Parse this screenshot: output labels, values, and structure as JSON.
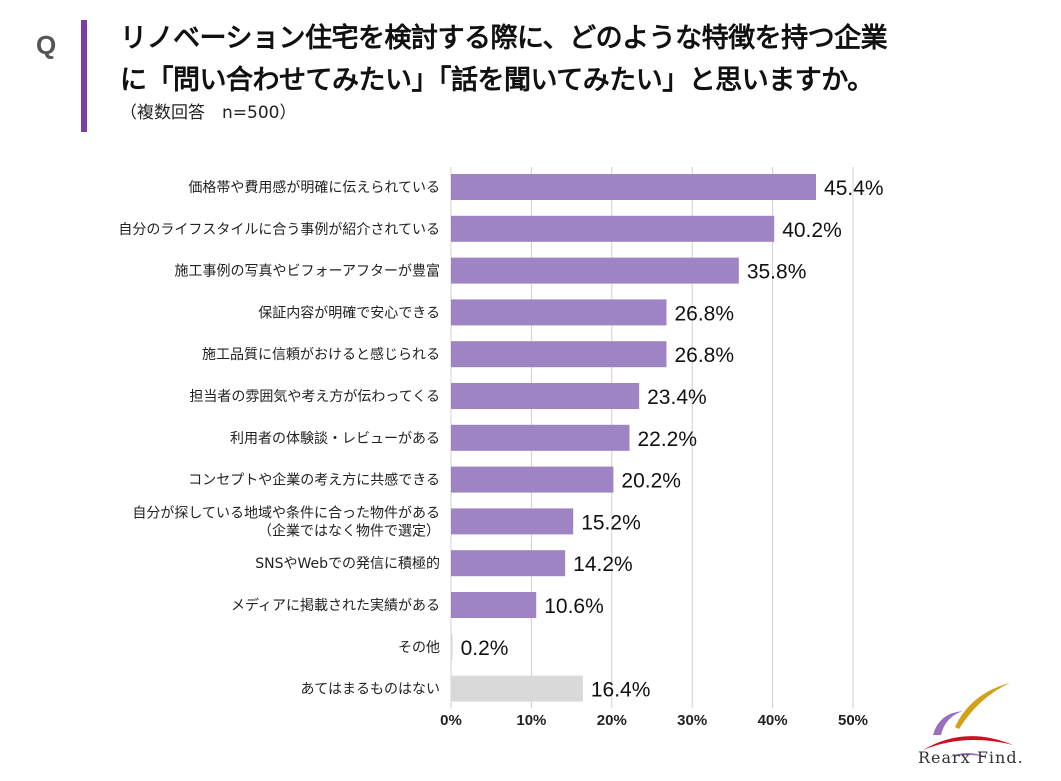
{
  "header": {
    "q_label": "Q",
    "title_line1": "リノベーション住宅を検討する際に、どのような特徴を持つ企業",
    "title_line2": "に「問い合わせてみたい」「話を聞いてみたい」と思いますか。",
    "subtitle": "（複数回答　n=500）"
  },
  "chart_data": {
    "type": "bar",
    "orientation": "horizontal",
    "categories": [
      [
        "価格帯や費用感が明確に伝えられている"
      ],
      [
        "自分のライフスタイルに合う事例が紹介されている"
      ],
      [
        "施工事例の写真やビフォーアフターが豊富"
      ],
      [
        "保証内容が明確で安心できる"
      ],
      [
        "施工品質に信頼がおけると感じられる"
      ],
      [
        "担当者の雰囲気や考え方が伝わってくる"
      ],
      [
        "利用者の体験談・レビューがある"
      ],
      [
        "コンセプトや企業の考え方に共感できる"
      ],
      [
        "自分が探している地域や条件に合った物件がある",
        "（企業ではなく物件で選定）"
      ],
      [
        "SNSやWebでの発信に積極的"
      ],
      [
        "メディアに掲載された実績がある"
      ],
      [
        "その他"
      ],
      [
        "あてはまるものはない"
      ]
    ],
    "values": [
      45.4,
      40.2,
      35.8,
      26.8,
      26.8,
      23.4,
      22.2,
      20.2,
      15.2,
      14.2,
      10.6,
      0.2,
      16.4
    ],
    "value_labels": [
      "45.4%",
      "40.2%",
      "35.8%",
      "26.8%",
      "26.8%",
      "23.4%",
      "22.2%",
      "20.2%",
      "15.2%",
      "14.2%",
      "10.6%",
      "0.2%",
      "16.4%"
    ],
    "bar_colors": [
      "#9e84c2",
      "#9e84c2",
      "#9e84c2",
      "#9e84c2",
      "#9e84c2",
      "#9e84c2",
      "#9e84c2",
      "#9e84c2",
      "#9e84c2",
      "#9e84c2",
      "#9e84c2",
      "#d9d9d9",
      "#d9d9d9"
    ],
    "xlim": [
      0,
      50
    ],
    "xticks": [
      "0%",
      "10%",
      "20%",
      "30%",
      "40%",
      "50%"
    ],
    "grid": true,
    "legend": "none"
  },
  "logo": {
    "text": "Rearx Find."
  }
}
